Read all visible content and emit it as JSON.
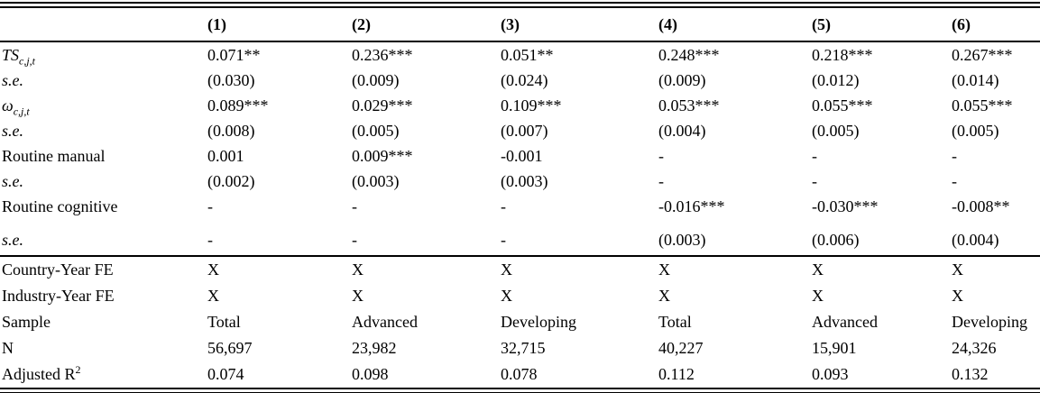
{
  "table": {
    "columns": [
      "(1)",
      "(2)",
      "(3)",
      "(4)",
      "(5)",
      "(6)"
    ],
    "coefficient_rows": [
      {
        "label": "TS",
        "sub": "c,j,t",
        "italic": true,
        "values": [
          "0.071**",
          "0.236***",
          "0.051**",
          "0.248***",
          "0.218***",
          "0.267***"
        ]
      },
      {
        "label": "s.e.",
        "italic": true,
        "values": [
          "(0.030)",
          "(0.009)",
          "(0.024)",
          "(0.009)",
          "(0.012)",
          "(0.014)"
        ]
      },
      {
        "label": "ω",
        "sub": "c,j,t",
        "italic": true,
        "values": [
          "0.089***",
          "0.029***",
          "0.109***",
          "0.053***",
          "0.055***",
          "0.055***"
        ]
      },
      {
        "label": "s.e.",
        "italic": true,
        "values": [
          "(0.008)",
          "(0.005)",
          "(0.007)",
          "(0.004)",
          "(0.005)",
          "(0.005)"
        ]
      },
      {
        "label": "Routine manual",
        "italic": false,
        "values": [
          "0.001",
          "0.009***",
          "-0.001",
          "-",
          "-",
          "-"
        ]
      },
      {
        "label": "s.e.",
        "italic": true,
        "values": [
          "(0.002)",
          "(0.003)",
          "(0.003)",
          "-",
          "-",
          "-"
        ]
      },
      {
        "label": "Routine cognitive",
        "italic": false,
        "values": [
          "-",
          "-",
          "-",
          "-0.016***",
          "-0.030***",
          "-0.008**"
        ]
      },
      {
        "label": "s.e.",
        "italic": true,
        "tall": true,
        "values": [
          "-",
          "-",
          "-",
          "(0.003)",
          "(0.006)",
          "(0.004)"
        ]
      }
    ],
    "stats_rows": [
      {
        "label": "Country-Year FE",
        "italic": false,
        "values": [
          "X",
          "X",
          "X",
          "X",
          "X",
          "X"
        ]
      },
      {
        "label": "Industry-Year FE",
        "italic": false,
        "values": [
          "X",
          "X",
          "X",
          "X",
          "X",
          "X"
        ]
      },
      {
        "label": "Sample",
        "italic": false,
        "values": [
          "Total",
          "Advanced",
          "Developing",
          "Total",
          "Advanced",
          "Developing"
        ]
      },
      {
        "label": "N",
        "italic": false,
        "values": [
          "56,697",
          "23,982",
          "32,715",
          "40,227",
          "15,901",
          "24,326"
        ]
      },
      {
        "label": "Adjusted R",
        "sup": "2",
        "italic": false,
        "values": [
          "0.074",
          "0.098",
          "0.078",
          "0.112",
          "0.093",
          "0.132"
        ]
      }
    ]
  }
}
